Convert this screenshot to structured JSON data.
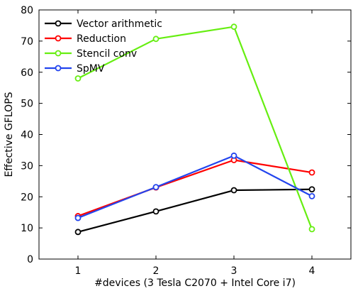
{
  "chart_data": {
    "type": "line",
    "title": "",
    "xlabel": "#devices (3 Tesla C2070 + Intel Core i7)",
    "ylabel": "Effective GFLOPS",
    "x": [
      1,
      2,
      3,
      4
    ],
    "xlim": [
      0.5,
      4.5
    ],
    "ylim": [
      0,
      80
    ],
    "xticks": [
      "1",
      "2",
      "3",
      "4"
    ],
    "yticks": [
      "0",
      "10",
      "20",
      "30",
      "40",
      "50",
      "60",
      "70",
      "80"
    ],
    "grid": false,
    "legend_position": "top-left",
    "series": [
      {
        "name": "Vector arithmetic",
        "color": "#000000",
        "values": [
          8.7,
          15.3,
          22.1,
          22.4
        ]
      },
      {
        "name": "Reduction",
        "color": "#ff0000",
        "values": [
          13.8,
          23.0,
          31.8,
          27.8
        ]
      },
      {
        "name": "Stencil conv",
        "color": "#66ee11",
        "values": [
          58.0,
          70.7,
          74.6,
          9.6
        ]
      },
      {
        "name": "SpMV",
        "color": "#2244ee",
        "values": [
          13.2,
          23.1,
          33.2,
          20.2
        ]
      }
    ]
  }
}
